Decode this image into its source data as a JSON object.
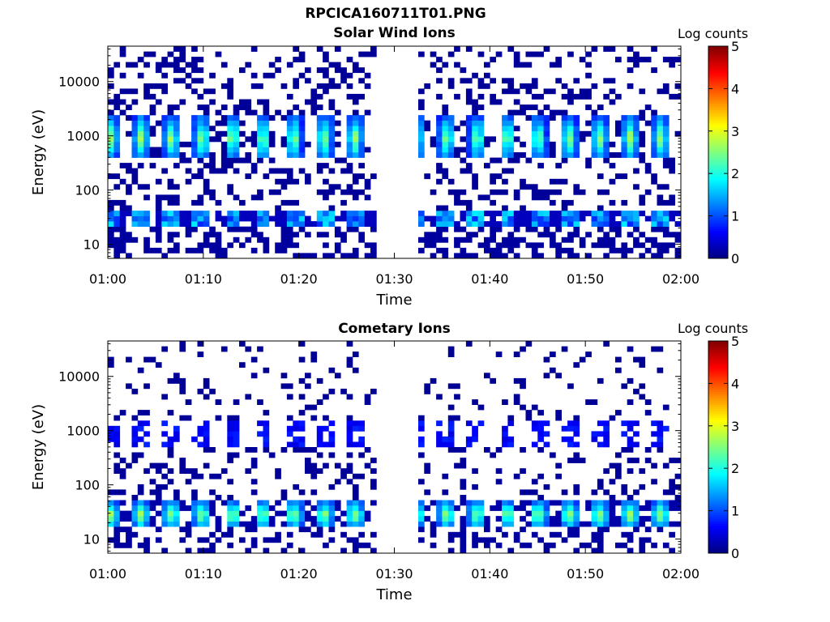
{
  "figure": {
    "title": "RPCICA160711T01.PNG"
  },
  "chart_data": [
    {
      "type": "heatmap",
      "title": "Solar Wind Ions",
      "xlabel": "Time",
      "ylabel": "Energy (eV)",
      "x_ticks": [
        "01:00",
        "01:10",
        "01:20",
        "01:30",
        "01:40",
        "01:50",
        "02:00"
      ],
      "xlim_minutes": [
        0,
        60
      ],
      "y_ticks": [
        "10",
        "100",
        "1000",
        "10000"
      ],
      "ylim": [
        5.5,
        45000
      ],
      "y_scale": "log",
      "colorbar": {
        "label": "Log counts",
        "ticks": [
          "0",
          "1",
          "2",
          "3",
          "4",
          "5"
        ],
        "range": [
          0,
          5
        ],
        "colormap": "jet"
      },
      "data_gap_minutes": [
        28.3,
        32.2
      ],
      "features": [
        {
          "name": "periodic high-flux band",
          "energy_range_eV": [
            400,
            2500
          ],
          "peak_log_counts": 2.5,
          "period_minutes": 3.2
        },
        {
          "name": "low-energy band",
          "energy_range_eV": [
            20,
            40
          ],
          "peak_log_counts": 1.8
        },
        {
          "name": "sparse background",
          "energy_range_eV": [
            6,
            40000
          ],
          "log_counts": 0.1
        }
      ]
    },
    {
      "type": "heatmap",
      "title": "Cometary Ions",
      "xlabel": "Time",
      "ylabel": "Energy (eV)",
      "x_ticks": [
        "01:00",
        "01:10",
        "01:20",
        "01:30",
        "01:40",
        "01:50",
        "02:00"
      ],
      "xlim_minutes": [
        0,
        60
      ],
      "y_ticks": [
        "10",
        "100",
        "1000",
        "10000"
      ],
      "ylim": [
        5.5,
        45000
      ],
      "y_scale": "log",
      "colorbar": {
        "label": "Log counts",
        "ticks": [
          "0",
          "1",
          "2",
          "3",
          "4",
          "5"
        ],
        "range": [
          0,
          5
        ],
        "colormap": "jet"
      },
      "data_gap_minutes": [
        28.3,
        32.2
      ],
      "features": [
        {
          "name": "periodic low-energy band",
          "energy_range_eV": [
            16,
            50
          ],
          "peak_log_counts": 2.6,
          "period_minutes": 3.2
        },
        {
          "name": "periodic mid-energy blobs",
          "energy_range_eV": [
            500,
            1500
          ],
          "peak_log_counts": 0.6
        },
        {
          "name": "sparse background",
          "energy_range_eV": [
            6,
            30000
          ],
          "log_counts": 0.1
        }
      ]
    }
  ]
}
